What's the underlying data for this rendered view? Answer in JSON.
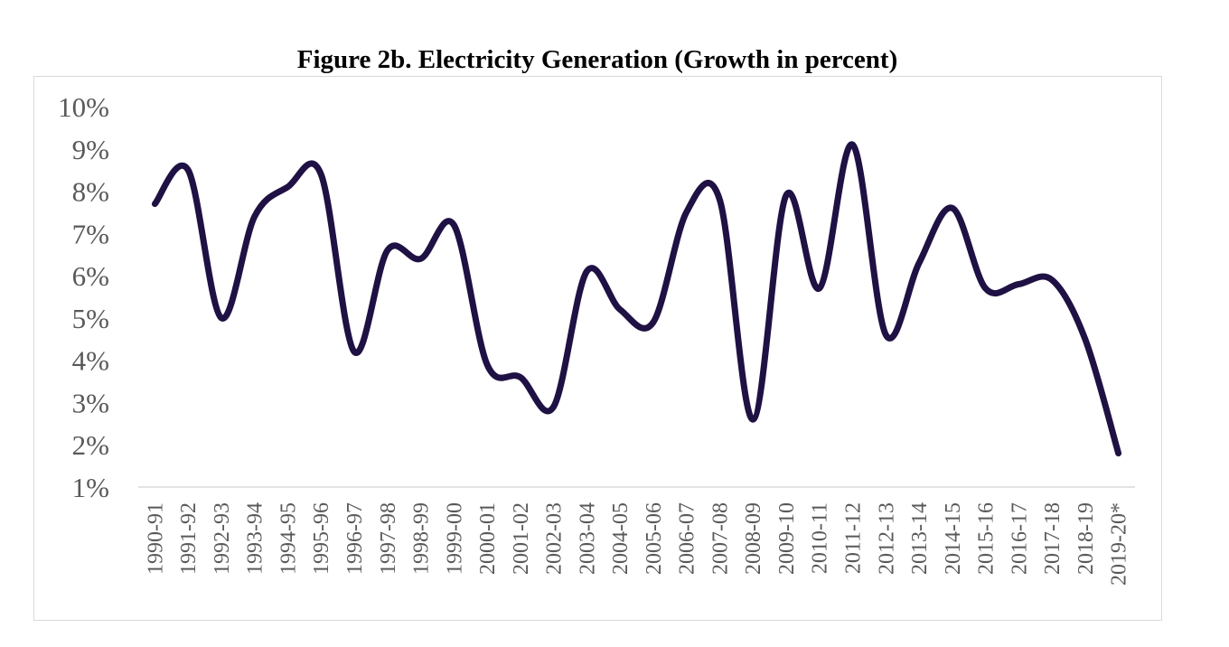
{
  "chart_data": {
    "type": "line",
    "title": "Figure 2b. Electricity Generation (Growth in percent)",
    "xlabel": "",
    "ylabel": "",
    "categories": [
      "1990-91",
      "1991-92",
      "1992-93",
      "1993-94",
      "1994-95",
      "1995-96",
      "1996-97",
      "1997-98",
      "1998-99",
      "1999-00",
      "2000-01",
      "2001-02",
      "2002-03",
      "2003-04",
      "2004-05",
      "2005-06",
      "2006-07",
      "2007-08",
      "2008-09",
      "2009-10",
      "2010-11",
      "2011-12",
      "2012-13",
      "2013-14",
      "2014-15",
      "2015-16",
      "2016-17",
      "2017-18",
      "2018-19",
      "2019-20*"
    ],
    "series": [
      {
        "values": [
          7.7,
          8.5,
          5.0,
          7.4,
          8.1,
          8.4,
          4.2,
          6.6,
          6.4,
          7.2,
          3.9,
          3.6,
          2.9,
          6.1,
          5.2,
          4.9,
          7.5,
          7.8,
          2.6,
          7.9,
          5.7,
          9.1,
          4.6,
          6.3,
          7.6,
          5.7,
          5.8,
          5.9,
          4.5,
          1.8
        ],
        "color": "#1f1144"
      }
    ],
    "ylim": [
      1,
      10
    ],
    "yticks": [
      1,
      2,
      3,
      4,
      5,
      6,
      7,
      8,
      9,
      10
    ],
    "ytick_labels": [
      "1%",
      "2%",
      "3%",
      "4%",
      "5%",
      "6%",
      "7%",
      "8%",
      "9%",
      "10%"
    ],
    "grid": false,
    "legend": "none",
    "smooth": true
  }
}
